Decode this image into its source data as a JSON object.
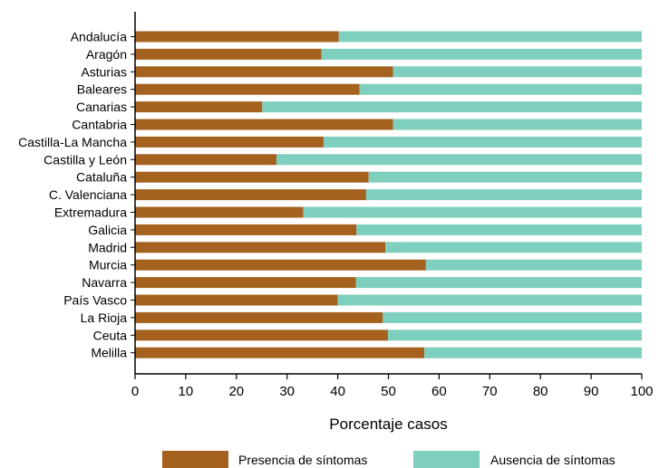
{
  "chart_data": {
    "type": "bar",
    "orientation": "horizontal",
    "stacked": true,
    "categories": [
      "Andalucía",
      "Aragón",
      "Asturias",
      "Baleares",
      "Canarias",
      "Cantabria",
      "Castilla-La Mancha",
      "Castilla y León",
      "Cataluña",
      "C. Valenciana",
      "Extremadura",
      "Galicia",
      "Madrid",
      "Murcia",
      "Navarra",
      "País Vasco",
      "La Rioja",
      "Ceuta",
      "Melilla"
    ],
    "series": [
      {
        "name": "Presencia de síntomas",
        "color": "#a5621f",
        "values": [
          40.2,
          36.8,
          50.9,
          44.3,
          25.1,
          50.9,
          37.2,
          27.9,
          46.1,
          45.6,
          33.2,
          43.7,
          49.4,
          57.4,
          43.6,
          40.0,
          48.9,
          49.9,
          57.1
        ]
      },
      {
        "name": "Ausencia de síntomas",
        "color": "#7ecfbe",
        "values": [
          59.8,
          63.2,
          49.1,
          55.7,
          74.9,
          49.1,
          62.8,
          72.1,
          53.9,
          54.4,
          66.8,
          56.3,
          50.6,
          42.6,
          56.4,
          60.0,
          51.1,
          50.1,
          42.9
        ]
      }
    ],
    "title": "",
    "xlabel": "Porcentaje casos",
    "ylabel": "",
    "xlim": [
      0,
      100
    ],
    "xticks": [
      "0",
      "10",
      "20",
      "30",
      "40",
      "50",
      "60",
      "70",
      "80",
      "90",
      "100"
    ],
    "grid": false,
    "legend_position": "bottom"
  }
}
